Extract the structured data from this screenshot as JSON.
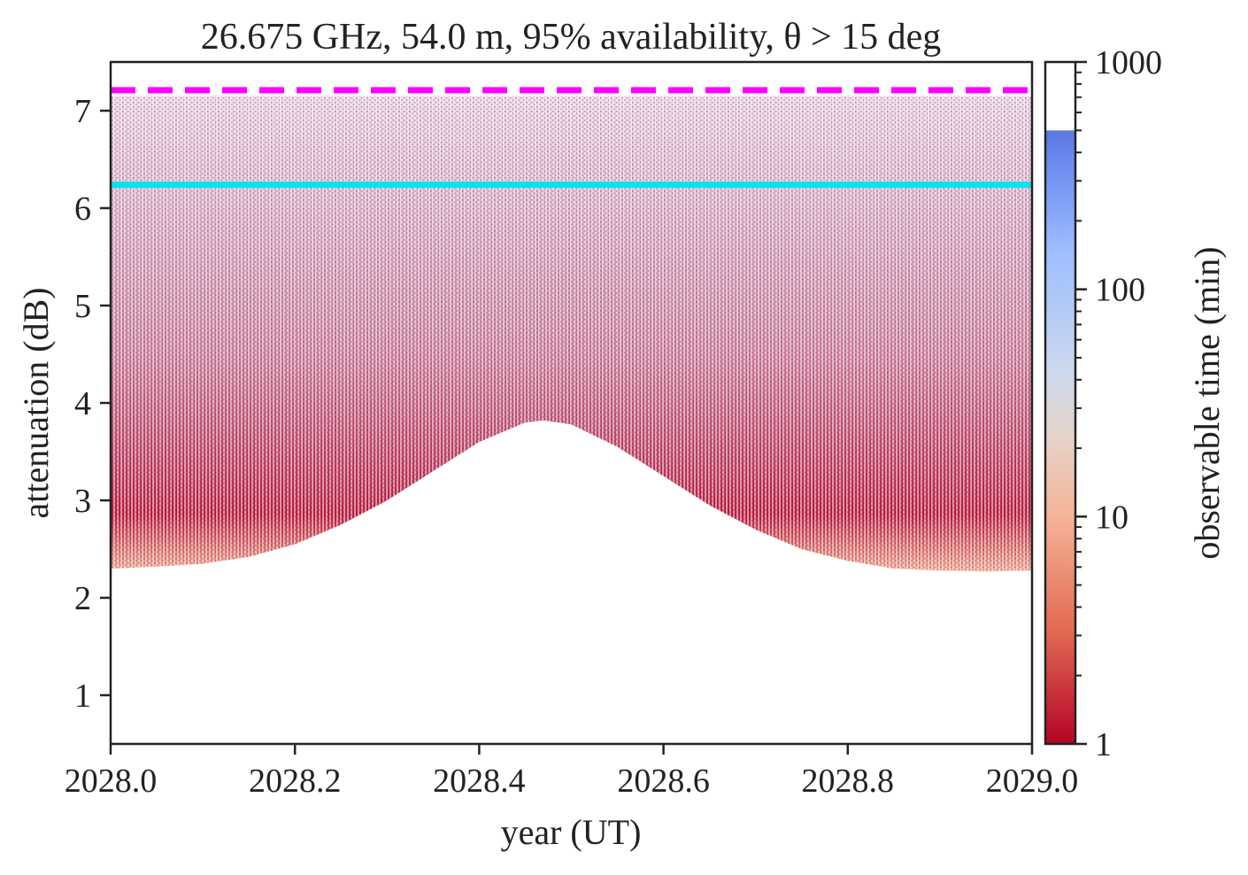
{
  "chart_data": {
    "type": "heatmap",
    "title": "26.675 GHz, 54.0 m, 95% availability, θ > 15 deg",
    "xlabel": "year (UT)",
    "ylabel": "attenuation (dB)",
    "xlim": [
      2028.0,
      2029.0
    ],
    "ylim": [
      0.5,
      7.5
    ],
    "x_ticks": [
      "2028.0",
      "2028.2",
      "2028.4",
      "2028.6",
      "2028.8",
      "2029.0"
    ],
    "x_tick_values": [
      2028.0,
      2028.2,
      2028.4,
      2028.6,
      2028.8,
      2029.0
    ],
    "y_ticks": [
      "1",
      "2",
      "3",
      "4",
      "5",
      "6",
      "7"
    ],
    "y_tick_values": [
      1,
      2,
      3,
      4,
      5,
      6,
      7
    ],
    "lower_envelope": {
      "x": [
        2028.0,
        2028.05,
        2028.1,
        2028.15,
        2028.2,
        2028.25,
        2028.3,
        2028.35,
        2028.4,
        2028.45,
        2028.47,
        2028.5,
        2028.55,
        2028.6,
        2028.65,
        2028.7,
        2028.75,
        2028.8,
        2028.85,
        2028.9,
        2028.95,
        2029.0
      ],
      "y": [
        2.3,
        2.32,
        2.35,
        2.42,
        2.55,
        2.75,
        3.0,
        3.3,
        3.6,
        3.8,
        3.82,
        3.78,
        3.55,
        3.25,
        2.95,
        2.7,
        2.5,
        2.38,
        2.3,
        2.28,
        2.27,
        2.28
      ]
    },
    "upper_extent_db": 7.0,
    "reference_lines": [
      {
        "style": "dashed",
        "color": "#ff00ff",
        "y": 7.21
      },
      {
        "style": "solid",
        "color": "#00e5ee",
        "y": 6.24
      }
    ],
    "colorbar": {
      "label": "observable time (min)",
      "scale": "log",
      "range": [
        1,
        1000
      ],
      "tick_labels": [
        "1",
        "10",
        "100",
        "1000"
      ],
      "tick_values": [
        1,
        10,
        100,
        1000
      ],
      "colormap": "coolwarm_r",
      "data_max": 500
    },
    "colors": {
      "low": "#b40426",
      "mid": "#dddcdc",
      "high": "#3b4cc0",
      "dot": "#7a0a5a",
      "axis": "#222222"
    }
  }
}
